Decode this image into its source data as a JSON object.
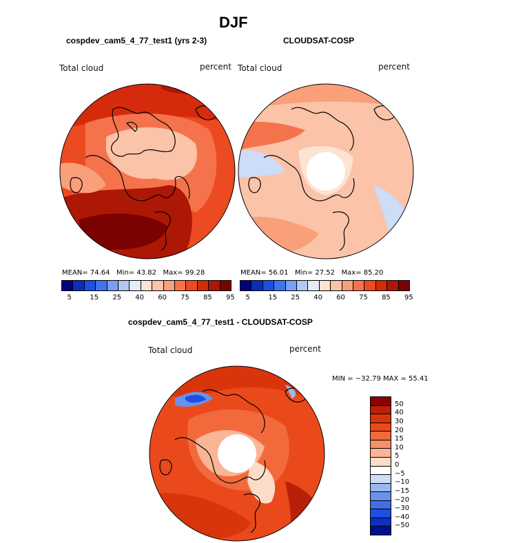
{
  "title": "DJF",
  "panels": [
    {
      "name": "model",
      "heading": "cospdev_cam5_4_77_test1 (yrs 2-3)",
      "variable": "Total cloud",
      "units": "percent",
      "mean_label": "MEAN=",
      "mean": "74.64",
      "min_label": "Min=",
      "min": "43.82",
      "max_label": "Max=",
      "max": "99.28"
    },
    {
      "name": "obs",
      "heading": "CLOUDSAT-COSP",
      "variable": "Total cloud",
      "units": "percent",
      "mean_label": "MEAN=",
      "mean": "56.01",
      "min_label": "Min=",
      "min": "27.52",
      "max_label": "Max=",
      "max": "85.20"
    },
    {
      "name": "diff",
      "heading": "cospdev_cam5_4_77_test1 - CLOUDSAT-COSP",
      "variable": "Total cloud",
      "units": "percent",
      "minmax_text": "MIN = −32.79 MAX =  55.41"
    }
  ],
  "colorbar_top": {
    "colors": [
      "#000080",
      "#0a2fb8",
      "#1a52e0",
      "#3f74f0",
      "#7a9ff2",
      "#b2c8f4",
      "#e4ecf8",
      "#fde3d3",
      "#fbc3a8",
      "#f99f7a",
      "#f4734d",
      "#ec4a20",
      "#d52b0c",
      "#ad1706",
      "#7a0200"
    ],
    "tick_labels": [
      "5",
      "15",
      "25",
      "40",
      "60",
      "75",
      "85",
      "95"
    ]
  },
  "colorbar_diff": {
    "colors": [
      "#8b0000",
      "#b8200a",
      "#d8350c",
      "#ea4a1b",
      "#f26a3c",
      "#f6906a",
      "#f9b596",
      "#fcdcc7",
      "#ffffff",
      "#cddcf7",
      "#9ab8f0",
      "#6a92ec",
      "#3f6fe8",
      "#1f4fe0",
      "#0c30c4",
      "#00108f"
    ],
    "tick_labels": [
      "50",
      "40",
      "30",
      "20",
      "15",
      "10",
      "5",
      "0",
      "−5",
      "−10",
      "−15",
      "−20",
      "−30",
      "−40",
      "−50"
    ]
  },
  "chart_data": [
    {
      "type": "heatmap",
      "title": "cospdev_cam5_4_77_test1 (yrs 2-3)",
      "label": "Total cloud",
      "units": "percent",
      "projection": "north polar stereographic",
      "stats": {
        "mean": 74.64,
        "min": 43.82,
        "max": 99.28
      },
      "levels": [
        5,
        10,
        15,
        20,
        25,
        30,
        40,
        50,
        60,
        70,
        75,
        80,
        85,
        90,
        95
      ]
    },
    {
      "type": "heatmap",
      "title": "CLOUDSAT-COSP",
      "label": "Total cloud",
      "units": "percent",
      "projection": "north polar stereographic",
      "stats": {
        "mean": 56.01,
        "min": 27.52,
        "max": 85.2
      },
      "levels": [
        5,
        10,
        15,
        20,
        25,
        30,
        40,
        50,
        60,
        70,
        75,
        80,
        85,
        90,
        95
      ]
    },
    {
      "type": "heatmap",
      "title": "cospdev_cam5_4_77_test1 - CLOUDSAT-COSP",
      "label": "Total cloud",
      "units": "percent",
      "projection": "north polar stereographic",
      "stats": {
        "min": -32.79,
        "max": 55.41
      },
      "levels": [
        -50,
        -40,
        -30,
        -20,
        -15,
        -10,
        -5,
        0,
        5,
        10,
        15,
        20,
        30,
        40,
        50
      ]
    }
  ]
}
